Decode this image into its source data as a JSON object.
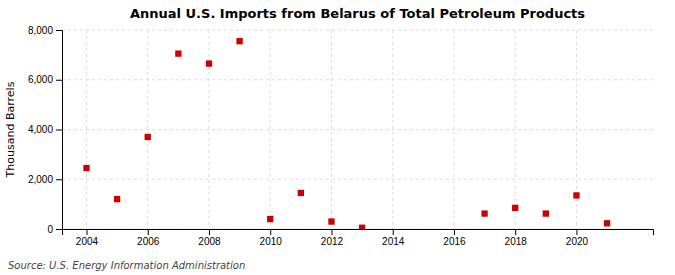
{
  "chart_data": {
    "type": "scatter",
    "title": "Annual U.S. Imports from Belarus of Total Petroleum Products",
    "ylabel": "Thousand Barrels",
    "source": "Source: U.S. Energy Information Administration",
    "x": [
      2004,
      2005,
      2006,
      2007,
      2008,
      2009,
      2010,
      2011,
      2012,
      2013,
      2017,
      2018,
      2019,
      2020,
      2021
    ],
    "values": [
      2450,
      1200,
      3700,
      7050,
      6650,
      7550,
      400,
      1450,
      300,
      50,
      620,
      850,
      620,
      1350,
      230
    ],
    "color": "#cc0000",
    "marker": "square",
    "xlim": [
      2003.2,
      2022.5
    ],
    "xticks": [
      2004,
      2006,
      2008,
      2010,
      2012,
      2014,
      2016,
      2018,
      2020
    ],
    "ylim": [
      0,
      8000
    ],
    "yticks": [
      0,
      {
        "value": 2000,
        "label": "2,000"
      },
      {
        "value": 4000,
        "label": "4,000"
      },
      {
        "value": 6000,
        "label": "6,000"
      },
      {
        "value": 8000,
        "label": "8,000"
      }
    ],
    "grid": true
  }
}
